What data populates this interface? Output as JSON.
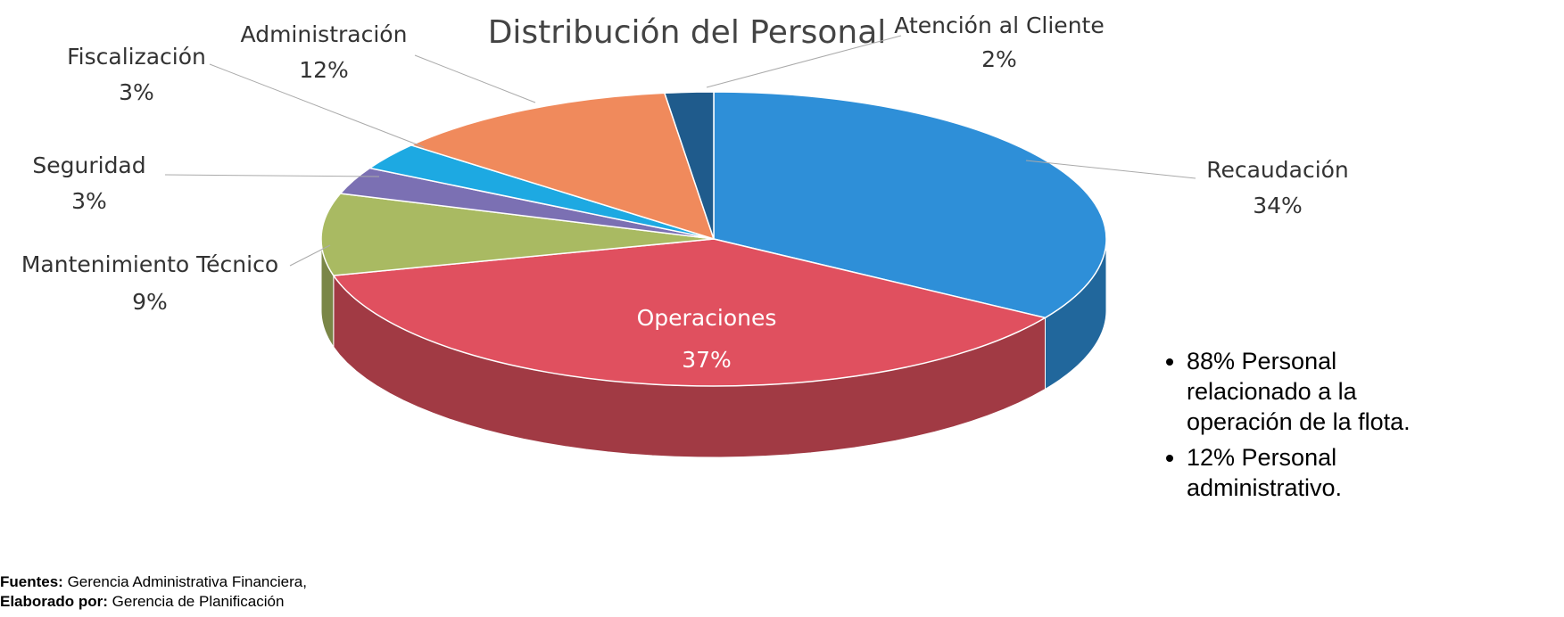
{
  "chart_data": {
    "type": "pie3d",
    "title": "Distribución del Personal",
    "categories": [
      "Recaudación",
      "Operaciones",
      "Mantenimiento Técnico",
      "Seguridad",
      "Fiscalización",
      "Administración",
      "Atención al Cliente"
    ],
    "values": [
      34,
      37,
      9,
      3,
      3,
      12,
      2
    ],
    "value_labels": [
      "34%",
      "37%",
      "9%",
      "3%",
      "3%",
      "12%",
      "2%"
    ],
    "colors": [
      "#2e8fd8",
      "#e0505f",
      "#a9ba62",
      "#7b70b3",
      "#1da9e2",
      "#f08a5c",
      "#1f5b8c"
    ]
  },
  "notes": [
    "88% Personal relacionado a la operación de la flota.",
    "12% Personal administrativo."
  ],
  "source": [
    {
      "label": "Fuentes:",
      "text": "Gerencia Administrativa Financiera,"
    },
    {
      "label": "Elaborado por:",
      "text": "Gerencia de Planificación"
    }
  ]
}
